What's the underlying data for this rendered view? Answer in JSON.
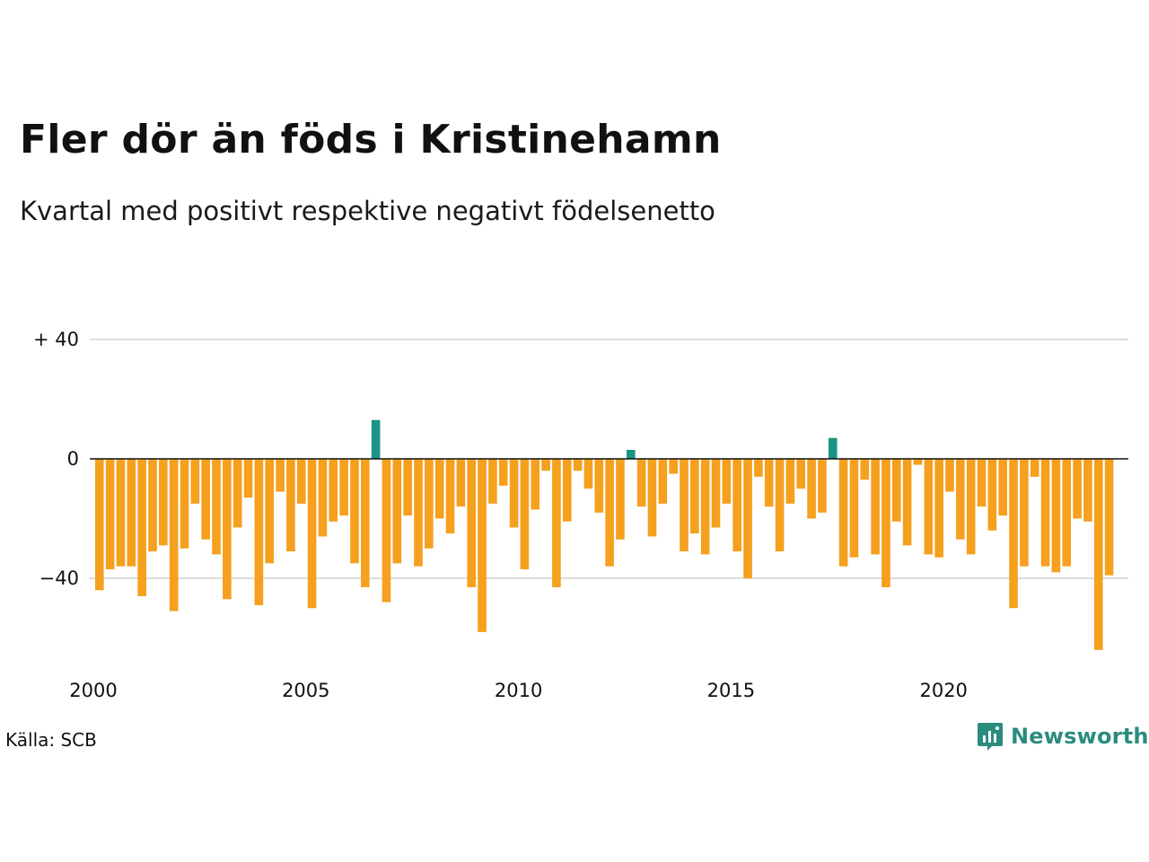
{
  "title": "Fler dör än föds i Kristinehamn",
  "subtitle": "Kvartal med positivt respektive negativt födelsenetto",
  "source": "Källa: SCB",
  "brand": {
    "name": "Newsworthy",
    "icon": "newsworthy-logo-icon"
  },
  "colors": {
    "positive": "#1a9483",
    "negative": "#f5a01e",
    "grid": "#dddddd",
    "zero_line": "#111111"
  },
  "chart_data": {
    "type": "bar",
    "title": "Fler dör än föds i Kristinehamn",
    "subtitle": "Kvartal med positivt respektive negativt födelsenetto",
    "x_start_year": 2000,
    "quarters_per_year": 4,
    "x_ticks": [
      "2000",
      "2005",
      "2010",
      "2015",
      "2020"
    ],
    "y_ticks": [
      {
        "value": 40,
        "label": "+ 40"
      },
      {
        "value": 0,
        "label": "0"
      },
      {
        "value": -40,
        "label": "−40"
      }
    ],
    "ylim": [
      -68,
      40
    ],
    "grid": true,
    "values": [
      -44,
      -37,
      -36,
      -36,
      -46,
      -31,
      -29,
      -51,
      -30,
      -15,
      -27,
      -32,
      -47,
      -23,
      -13,
      -49,
      -35,
      -11,
      -31,
      -15,
      -50,
      -26,
      -21,
      -19,
      -35,
      -43,
      13,
      -48,
      -35,
      -19,
      -36,
      -30,
      -20,
      -25,
      -16,
      -43,
      -58,
      -15,
      -9,
      -23,
      -37,
      -17,
      -4,
      -43,
      -21,
      -4,
      -10,
      -18,
      -36,
      -27,
      3,
      -16,
      -26,
      -15,
      -5,
      -31,
      -25,
      -32,
      -23,
      -15,
      -31,
      -40,
      -6,
      -16,
      -31,
      -15,
      -10,
      -20,
      -18,
      7,
      -36,
      -33,
      -7,
      -32,
      -43,
      -21,
      -29,
      -2,
      -32,
      -33,
      -11,
      -27,
      -32,
      -16,
      -24,
      -19,
      -50,
      -36,
      -6,
      -36,
      -38,
      -36,
      -20,
      -21,
      -64,
      -39
    ]
  }
}
